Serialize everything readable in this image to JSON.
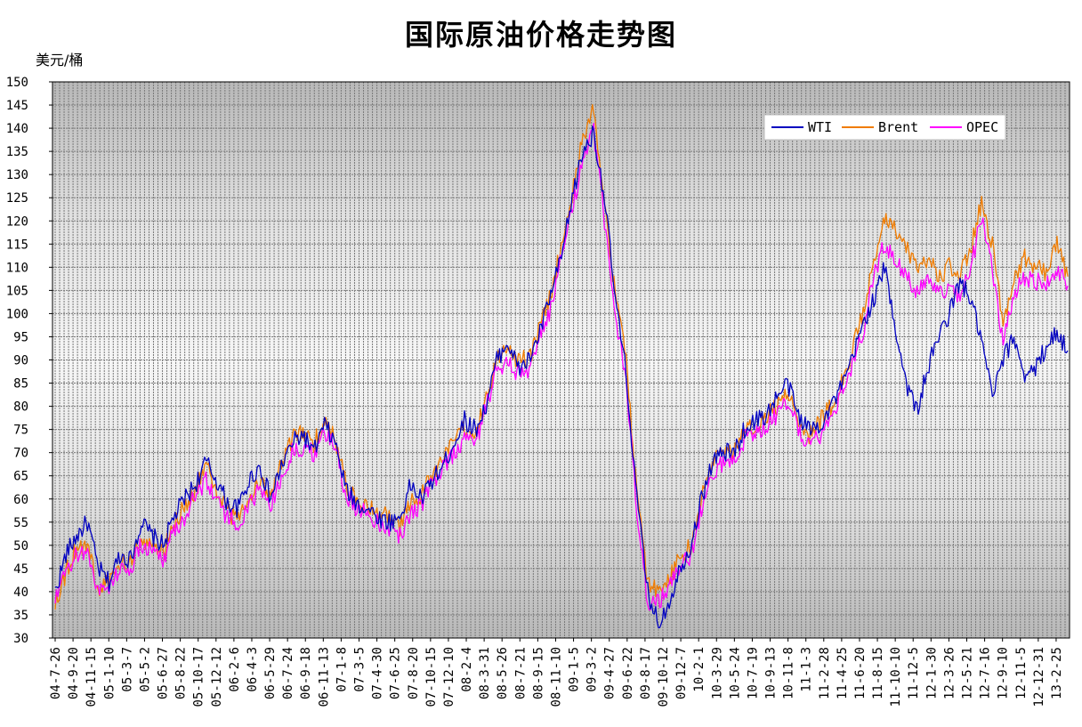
{
  "chart_data": {
    "type": "line",
    "title": "国际原油价格走势图",
    "ylabel": "美元/桶",
    "xlabel": "",
    "ylim": [
      30,
      150
    ],
    "y_ticks": [
      30,
      35,
      40,
      45,
      50,
      55,
      60,
      65,
      70,
      75,
      80,
      85,
      90,
      95,
      100,
      105,
      110,
      115,
      120,
      125,
      130,
      135,
      140,
      145,
      150
    ],
    "grid": true,
    "legend_position": "top-right",
    "x_tick_labels": [
      "04-7-26",
      "04-9-20",
      "04-11-15",
      "05-1-10",
      "05-3-7",
      "05-5-2",
      "05-6-27",
      "05-8-22",
      "05-10-17",
      "05-12-12",
      "06-2-6",
      "06-4-3",
      "06-5-29",
      "06-7-24",
      "06-9-18",
      "06-11-13",
      "07-1-8",
      "07-3-5",
      "07-4-30",
      "07-6-25",
      "07-8-20",
      "07-10-15",
      "07-12-10",
      "08-2-4",
      "08-3-31",
      "08-5-26",
      "08-7-21",
      "08-9-15",
      "08-11-10",
      "09-1-5",
      "09-3-2",
      "09-4-27",
      "09-6-22",
      "09-8-17",
      "09-10-12",
      "09-12-7",
      "10-2-1",
      "10-3-29",
      "10-5-24",
      "10-7-19",
      "10-9-13",
      "10-11-8",
      "11-1-3",
      "11-2-28",
      "11-4-25",
      "11-6-20",
      "11-8-15",
      "11-10-10",
      "11-12-5",
      "12-1-30",
      "12-3-26",
      "12-5-21",
      "12-7-16",
      "12-9-10",
      "12-11-5",
      "12-12-31",
      "13-2-25"
    ],
    "series": [
      {
        "name": "WTI",
        "color": "#0000c0",
        "values": [
          40,
          48,
          52,
          55,
          45,
          42,
          48,
          47,
          55,
          52,
          50,
          56,
          60,
          63,
          68,
          64,
          59,
          58,
          64,
          67,
          60,
          67,
          72,
          74,
          70,
          76,
          72,
          62,
          59,
          58,
          56,
          55,
          56,
          63,
          60,
          64,
          67,
          72,
          77,
          75,
          80,
          90,
          94,
          88,
          90,
          96,
          104,
          112,
          125,
          135,
          139,
          125,
          103,
          87,
          60,
          40,
          33,
          38,
          45,
          50,
          60,
          68,
          70,
          70,
          75,
          77,
          78,
          82,
          85,
          78,
          75,
          76,
          80,
          84,
          90,
          98,
          103,
          110,
          97,
          85,
          79,
          88,
          95,
          100,
          107,
          103,
          94,
          82,
          90,
          95,
          87,
          88,
          93,
          96,
          92
        ]
      },
      {
        "name": "Brent",
        "color": "#f07c00",
        "values": [
          38,
          44,
          50,
          50,
          40,
          42,
          46,
          46,
          52,
          50,
          48,
          55,
          58,
          62,
          67,
          62,
          57,
          56,
          60,
          64,
          61,
          67,
          73,
          74,
          72,
          77,
          73,
          63,
          60,
          58,
          57,
          56,
          54,
          59,
          61,
          65,
          69,
          72,
          75,
          74,
          82,
          90,
          92,
          90,
          90,
          97,
          104,
          115,
          126,
          138,
          144,
          124,
          104,
          90,
          62,
          42,
          40,
          43,
          47,
          50,
          60,
          68,
          71,
          70,
          75,
          76,
          78,
          80,
          83,
          77,
          74,
          77,
          80,
          85,
          92,
          100,
          112,
          120,
          118,
          114,
          110,
          112,
          108,
          110,
          108,
          114,
          124,
          115,
          98,
          108,
          112,
          110,
          109,
          115,
          108
        ]
      },
      {
        "name": "OPEC",
        "color": "#ff00ff",
        "values": [
          38,
          44,
          48,
          49,
          40,
          41,
          45,
          45,
          50,
          49,
          47,
          53,
          56,
          61,
          64,
          60,
          56,
          55,
          58,
          62,
          59,
          64,
          70,
          71,
          70,
          74,
          71,
          61,
          58,
          57,
          55,
          54,
          52,
          57,
          59,
          63,
          67,
          70,
          73,
          72,
          80,
          88,
          89,
          87,
          88,
          95,
          101,
          112,
          122,
          134,
          139,
          120,
          100,
          85,
          58,
          38,
          38,
          41,
          45,
          48,
          58,
          66,
          68,
          68,
          73,
          74,
          76,
          78,
          81,
          75,
          72,
          74,
          78,
          83,
          89,
          96,
          108,
          115,
          112,
          108,
          104,
          108,
          104,
          105,
          104,
          110,
          121,
          110,
          93,
          104,
          108,
          107,
          106,
          110,
          106
        ]
      }
    ]
  },
  "legend": {
    "items": [
      "WTI",
      "Brent",
      "OPEC"
    ]
  }
}
